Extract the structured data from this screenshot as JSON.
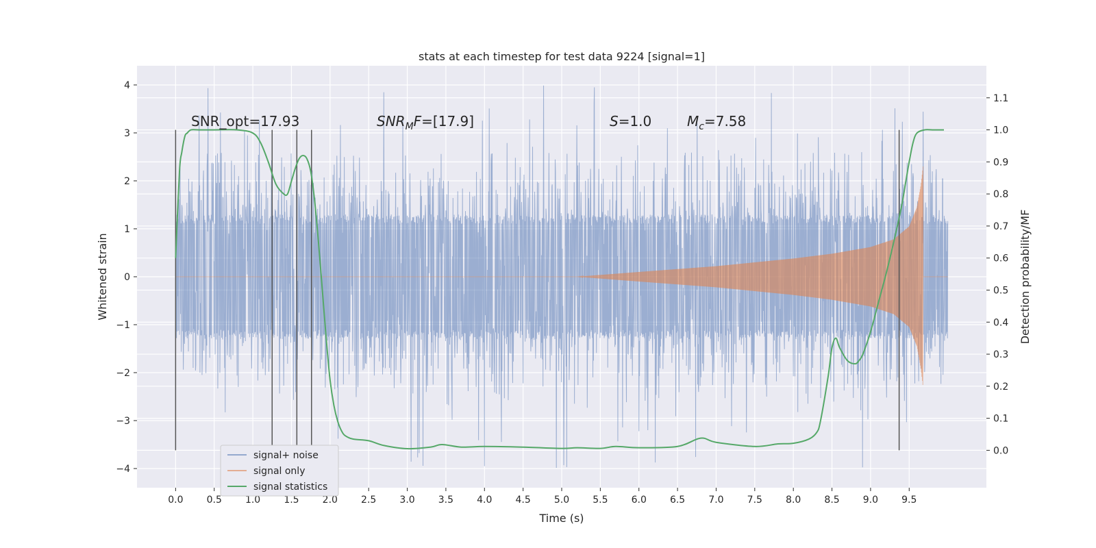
{
  "chart_data": {
    "type": "line",
    "title": "stats at each timestep for test data 9224 [signal=1]",
    "xlabel": "Time (s)",
    "ylabel": "Whitened strain",
    "y2label": "Detection probability/MF",
    "xlim": [
      -0.5,
      10.5
    ],
    "ylim": [
      -4.4,
      4.4
    ],
    "y2lim": [
      -0.1167,
      1.2
    ],
    "x_ticks": [
      0.0,
      0.5,
      1.0,
      1.5,
      2.0,
      2.5,
      3.0,
      3.5,
      4.0,
      4.5,
      5.0,
      5.5,
      6.0,
      6.5,
      7.0,
      7.5,
      8.0,
      8.5,
      9.0,
      9.5
    ],
    "x_tick_labels": [
      "0.0",
      "0.5",
      "1.0",
      "1.5",
      "2.0",
      "2.5",
      "3.0",
      "3.5",
      "4.0",
      "4.5",
      "5.0",
      "5.5",
      "6.0",
      "6.5",
      "7.0",
      "7.5",
      "8.0",
      "8.5",
      "9.0",
      "9.5"
    ],
    "y_ticks": [
      -4,
      -3,
      -2,
      -1,
      0,
      1,
      2,
      3,
      4
    ],
    "y_tick_labels": [
      "−4",
      "−3",
      "−2",
      "−1",
      "0",
      "1",
      "2",
      "3",
      "4"
    ],
    "y2_ticks": [
      0.0,
      0.1,
      0.2,
      0.3,
      0.4,
      0.5,
      0.6,
      0.7,
      0.8,
      0.9,
      1.0,
      1.1
    ],
    "y2_tick_labels": [
      "0.0",
      "0.1",
      "0.2",
      "0.3",
      "0.4",
      "0.5",
      "0.6",
      "0.7",
      "0.8",
      "0.9",
      "1.0",
      "1.1"
    ],
    "grid": true,
    "legend_position": "lower-left",
    "series": [
      {
        "name": "signal+ noise",
        "color": "#4c72b0",
        "axis": "left",
        "t_range": [
          0.0,
          10.0
        ],
        "envelope_abs": 1.3,
        "spike_max": 4.0,
        "spike_min": -4.0
      },
      {
        "name": "signal only",
        "color": "#dd8452",
        "axis": "left",
        "t_range": [
          5.2,
          9.68
        ],
        "amplitude": {
          "x": [
            5.2,
            6.0,
            7.0,
            8.0,
            8.5,
            9.0,
            9.3,
            9.5,
            9.6,
            9.65,
            9.68
          ],
          "y": [
            0.0,
            0.1,
            0.22,
            0.38,
            0.48,
            0.62,
            0.78,
            1.05,
            1.45,
            1.9,
            2.3
          ]
        }
      },
      {
        "name": "signal statistics",
        "color": "#55a868",
        "axis": "right",
        "x": [
          0.0,
          0.05,
          0.08,
          0.12,
          0.15,
          0.2,
          0.3,
          0.5,
          0.8,
          1.0,
          1.1,
          1.2,
          1.3,
          1.4,
          1.45,
          1.5,
          1.55,
          1.6,
          1.65,
          1.7,
          1.75,
          1.8,
          1.85,
          1.9,
          1.95,
          2.0,
          2.05,
          2.1,
          2.15,
          2.2,
          2.3,
          2.5,
          2.7,
          3.0,
          3.3,
          3.45,
          3.7,
          4.0,
          4.5,
          5.0,
          5.2,
          5.5,
          5.7,
          6.0,
          6.5,
          6.8,
          7.0,
          7.5,
          7.8,
          8.0,
          8.2,
          8.3,
          8.35,
          8.45,
          8.5,
          8.55,
          8.6,
          8.7,
          8.8,
          8.85,
          8.9,
          9.0,
          9.1,
          9.2,
          9.3,
          9.4,
          9.45,
          9.5,
          9.55,
          9.6,
          9.7,
          9.8,
          9.95
        ],
        "y": [
          0.6,
          0.87,
          0.93,
          0.98,
          0.99,
          1.0,
          1.0,
          1.0,
          1.0,
          0.99,
          0.96,
          0.9,
          0.83,
          0.8,
          0.8,
          0.84,
          0.88,
          0.91,
          0.92,
          0.91,
          0.87,
          0.78,
          0.65,
          0.5,
          0.35,
          0.22,
          0.14,
          0.09,
          0.06,
          0.045,
          0.035,
          0.03,
          0.015,
          0.005,
          0.01,
          0.018,
          0.01,
          0.012,
          0.01,
          0.006,
          0.008,
          0.006,
          0.012,
          0.008,
          0.012,
          0.038,
          0.025,
          0.012,
          0.02,
          0.022,
          0.035,
          0.055,
          0.09,
          0.23,
          0.32,
          0.35,
          0.32,
          0.28,
          0.27,
          0.28,
          0.3,
          0.37,
          0.46,
          0.55,
          0.65,
          0.76,
          0.83,
          0.9,
          0.96,
          0.99,
          1.0,
          1.0,
          1.0
        ]
      }
    ],
    "vertical_markers": {
      "color": "#555555",
      "x": [
        0.0,
        1.25,
        1.57,
        1.76,
        9.37
      ],
      "y2_top": 1.0,
      "y2_bottom": 0.0
    },
    "annotations": [
      {
        "id": "snr-opt",
        "text": "SNR_opt=17.93",
        "x": 0.2,
        "y": 3.25
      },
      {
        "id": "snr-mf",
        "text": "=[17.9]",
        "math_main": "SNR",
        "math_sub": "M",
        "math_tail": "F",
        "x": 2.6,
        "y": 3.25
      },
      {
        "id": "s-stat",
        "text": "=1.0",
        "math_main": "S",
        "x": 5.6,
        "y": 3.25
      },
      {
        "id": "chirp-mass",
        "text": "=7.58",
        "math_main": "M",
        "math_sub": "c",
        "x": 6.6,
        "y": 3.25
      }
    ]
  }
}
